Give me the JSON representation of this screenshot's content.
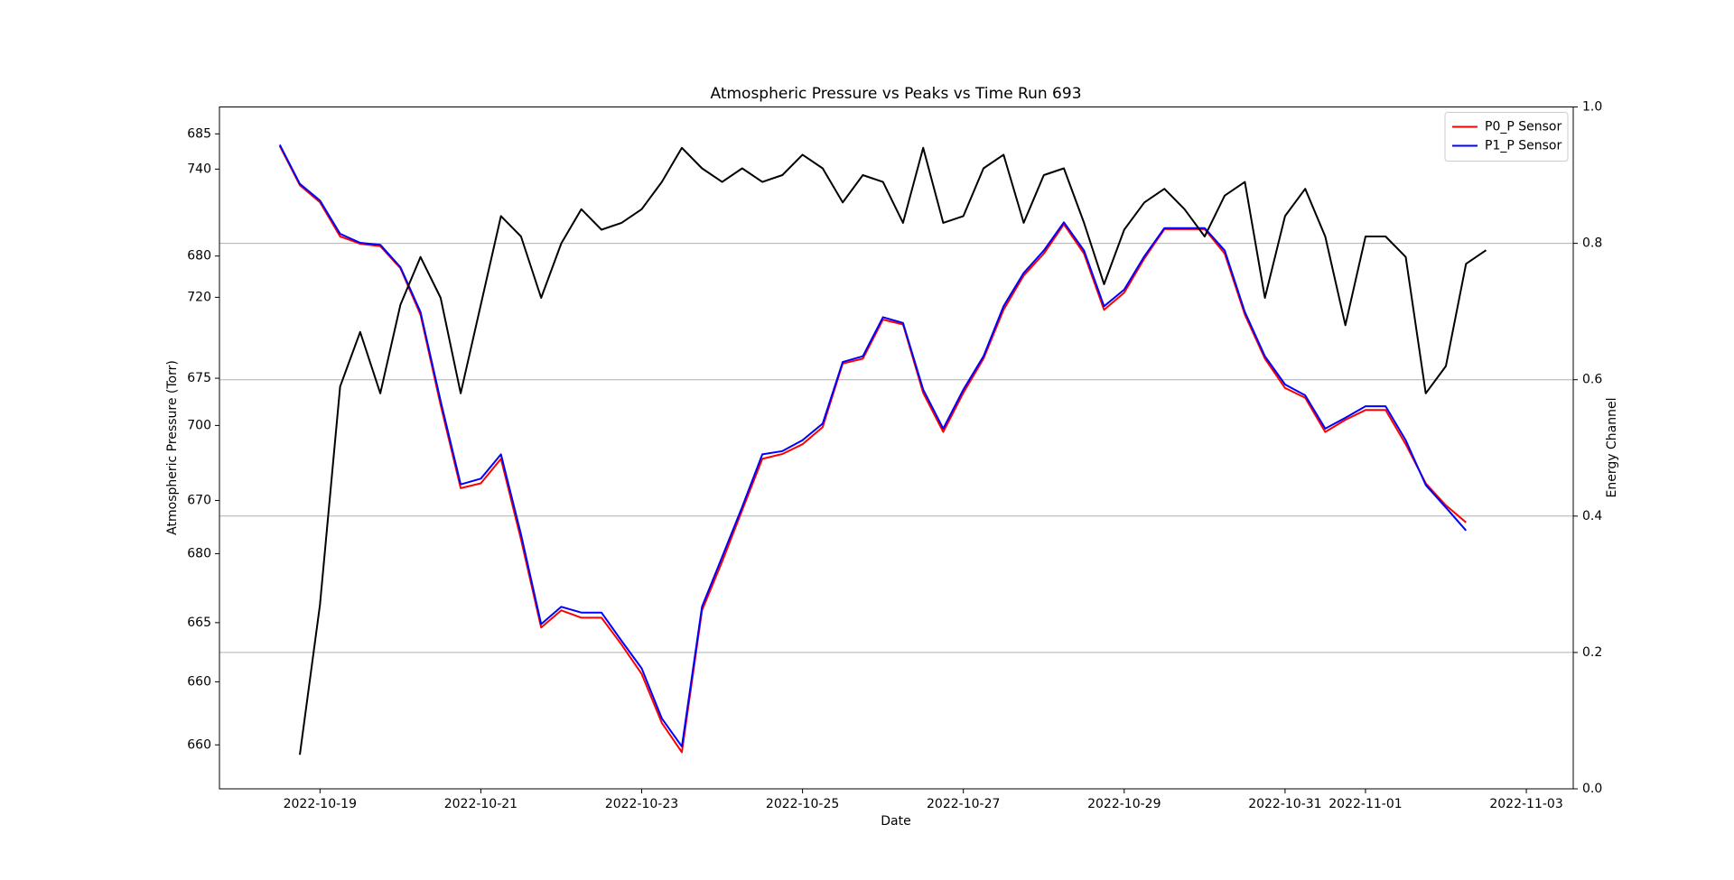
{
  "chart_data": {
    "type": "line",
    "title": "Atmospheric Pressure vs Peaks vs Time Run 693",
    "x_label": "Date",
    "y_label": "Atmospheric Pressure (Torr)",
    "y2_label": "Energy Channel",
    "legend": "upper right",
    "grid": "y2",
    "xlim": [
      "2022-10-17 18:00",
      "2022-11-03 14:00"
    ],
    "xticks": [
      "2022-10-19",
      "2022-10-21",
      "2022-10-23",
      "2022-10-25",
      "2022-10-27",
      "2022-10-29",
      "2022-10-31",
      "2022-11-01",
      "2022-11-03"
    ],
    "ylim": [
      658.2,
      686.1
    ],
    "yticks": [
      660,
      665,
      670,
      675,
      680,
      685
    ],
    "y3lim": [
      643.3,
      749.7
    ],
    "y3ticks": [
      660,
      680,
      700,
      720,
      740
    ],
    "y2lim": [
      0,
      1
    ],
    "y2ticks": [
      {
        "value": 0,
        "label": "0.0"
      },
      {
        "value": 0.2,
        "label": "0.2"
      },
      {
        "value": 0.4,
        "label": "0.4"
      },
      {
        "value": 0.6,
        "label": "0.6"
      },
      {
        "value": 0.8,
        "label": "0.8"
      },
      {
        "value": 1,
        "label": "1.0"
      }
    ],
    "x": [
      "2022-10-18 12:00",
      "2022-10-18 18:00",
      "2022-10-19 00:00",
      "2022-10-19 06:00",
      "2022-10-19 12:00",
      "2022-10-19 18:00",
      "2022-10-20 00:00",
      "2022-10-20 06:00",
      "2022-10-20 12:00",
      "2022-10-20 18:00",
      "2022-10-21 00:00",
      "2022-10-21 06:00",
      "2022-10-21 12:00",
      "2022-10-21 18:00",
      "2022-10-22 00:00",
      "2022-10-22 06:00",
      "2022-10-22 12:00",
      "2022-10-22 18:00",
      "2022-10-23 00:00",
      "2022-10-23 06:00",
      "2022-10-23 12:00",
      "2022-10-23 18:00",
      "2022-10-24 00:00",
      "2022-10-24 06:00",
      "2022-10-24 12:00",
      "2022-10-24 18:00",
      "2022-10-25 00:00",
      "2022-10-25 06:00",
      "2022-10-25 12:00",
      "2022-10-25 18:00",
      "2022-10-26 00:00",
      "2022-10-26 06:00",
      "2022-10-26 12:00",
      "2022-10-26 18:00",
      "2022-10-27 00:00",
      "2022-10-27 06:00",
      "2022-10-27 12:00",
      "2022-10-27 18:00",
      "2022-10-28 00:00",
      "2022-10-28 06:00",
      "2022-10-28 12:00",
      "2022-10-28 18:00",
      "2022-10-29 00:00",
      "2022-10-29 06:00",
      "2022-10-29 12:00",
      "2022-10-29 18:00",
      "2022-10-30 00:00",
      "2022-10-30 06:00",
      "2022-10-30 12:00",
      "2022-10-30 18:00",
      "2022-10-31 00:00",
      "2022-10-31 06:00",
      "2022-10-31 12:00",
      "2022-10-31 18:00",
      "2022-11-01 00:00",
      "2022-11-01 06:00",
      "2022-11-01 12:00",
      "2022-11-01 18:00",
      "2022-11-02 00:00",
      "2022-11-02 06:00",
      "2022-11-02 12:00",
      "2022-11-02 18:00"
    ],
    "series": [
      {
        "name": "P0_P Sensor",
        "color": "#ff0000",
        "axis": "y",
        "values": [
          684.5,
          682.9,
          682.2,
          680.8,
          680.5,
          680.4,
          679.5,
          677.6,
          673.9,
          670.5,
          670.7,
          671.7,
          668.4,
          664.8,
          665.5,
          665.2,
          665.2,
          664.1,
          662.9,
          660.9,
          659.7,
          665.5,
          667.5,
          669.6,
          671.7,
          671.9,
          672.3,
          673.0,
          675.6,
          675.8,
          677.4,
          677.2,
          674.4,
          672.8,
          674.4,
          675.8,
          677.8,
          679.2,
          680.1,
          681.3,
          680.1,
          677.8,
          678.5,
          679.9,
          681.1,
          681.1,
          681.1,
          680.1,
          677.6,
          675.8,
          674.6,
          674.2,
          672.8,
          673.3,
          673.7,
          673.7,
          672.3,
          670.7,
          669.8,
          669.1,
          null,
          null
        ]
      },
      {
        "name": "P1_P Sensor",
        "color": "#0000ff",
        "axis": "y3",
        "values": [
          743.8,
          737.7,
          735.1,
          729.9,
          728.5,
          728.2,
          724.7,
          717.7,
          703.8,
          690.8,
          691.7,
          695.5,
          683.0,
          669.0,
          671.7,
          670.8,
          670.8,
          666.4,
          662.1,
          654.3,
          649.9,
          671.7,
          679.5,
          687.3,
          695.5,
          696.0,
          697.7,
          700.3,
          709.9,
          710.8,
          716.9,
          716.0,
          705.6,
          699.5,
          705.6,
          710.8,
          718.6,
          723.8,
          727.3,
          731.7,
          727.3,
          718.6,
          721.2,
          726.4,
          730.8,
          730.8,
          730.8,
          727.3,
          717.7,
          710.8,
          706.4,
          704.7,
          699.5,
          701.2,
          703.0,
          703.0,
          697.7,
          690.7,
          687.2,
          683.6,
          null,
          null
        ]
      },
      {
        "color": "#000000",
        "axis": "y2",
        "values": [
          null,
          0.05,
          0.27,
          0.59,
          0.67,
          0.58,
          0.71,
          0.78,
          0.72,
          0.58,
          0.71,
          0.84,
          0.81,
          0.72,
          0.8,
          0.85,
          0.82,
          0.83,
          0.85,
          0.89,
          0.94,
          0.91,
          0.89,
          0.91,
          0.89,
          0.9,
          0.93,
          0.91,
          0.86,
          0.9,
          0.89,
          0.83,
          0.94,
          0.83,
          0.84,
          0.91,
          0.93,
          0.83,
          0.9,
          0.91,
          0.83,
          0.74,
          0.82,
          0.86,
          0.88,
          0.85,
          0.81,
          0.87,
          0.89,
          0.72,
          0.84,
          0.88,
          0.81,
          0.68,
          0.81,
          0.81,
          0.78,
          0.58,
          0.62,
          0.77,
          0.79,
          null
        ]
      }
    ]
  }
}
